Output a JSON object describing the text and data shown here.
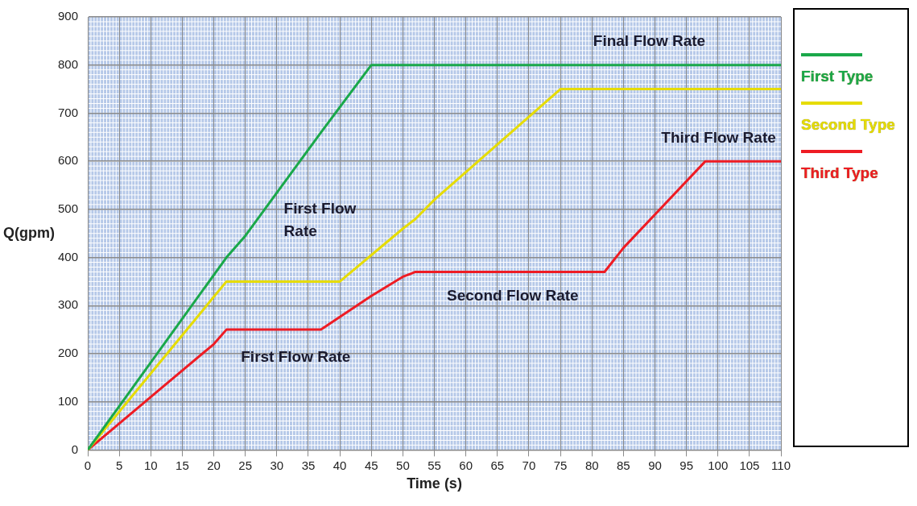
{
  "chart_data": {
    "type": "line",
    "xlabel": "Time (s)",
    "ylabel": "Q(gpm)",
    "xlim": [
      0,
      110
    ],
    "xticks": [
      0,
      5,
      10,
      15,
      20,
      25,
      30,
      35,
      40,
      45,
      50,
      55,
      60,
      65,
      70,
      75,
      80,
      85,
      90,
      95,
      100,
      105,
      110
    ],
    "ylim": [
      0,
      900
    ],
    "yticks": [
      0,
      100,
      200,
      300,
      400,
      500,
      600,
      700,
      800,
      900
    ],
    "grid": true,
    "legend": "right",
    "marker": "none",
    "line_style": "solid",
    "series": [
      {
        "name": "First Type",
        "color": "#1aa84a",
        "x": [
          0,
          22,
          25,
          37,
          45,
          110
        ],
        "values": [
          0,
          400,
          445,
          660,
          800,
          800
        ]
      },
      {
        "name": "Second Type",
        "color": "#e6dc00",
        "x": [
          0,
          22,
          40,
          50,
          52,
          55,
          75,
          110
        ],
        "values": [
          0,
          350,
          350,
          460,
          480,
          520,
          750,
          750
        ]
      },
      {
        "name": "Third Type",
        "color": "#ee1c24",
        "x": [
          0,
          10,
          20,
          22,
          37,
          45,
          50,
          52,
          82,
          85,
          98,
          110
        ],
        "values": [
          0,
          110,
          220,
          250,
          250,
          320,
          360,
          370,
          370,
          420,
          600,
          600
        ]
      }
    ],
    "annotations": [
      "Final Flow Rate",
      "First Flow\nRate",
      "First Flow Rate",
      "Second Flow Rate",
      "Third Flow Rate"
    ]
  }
}
